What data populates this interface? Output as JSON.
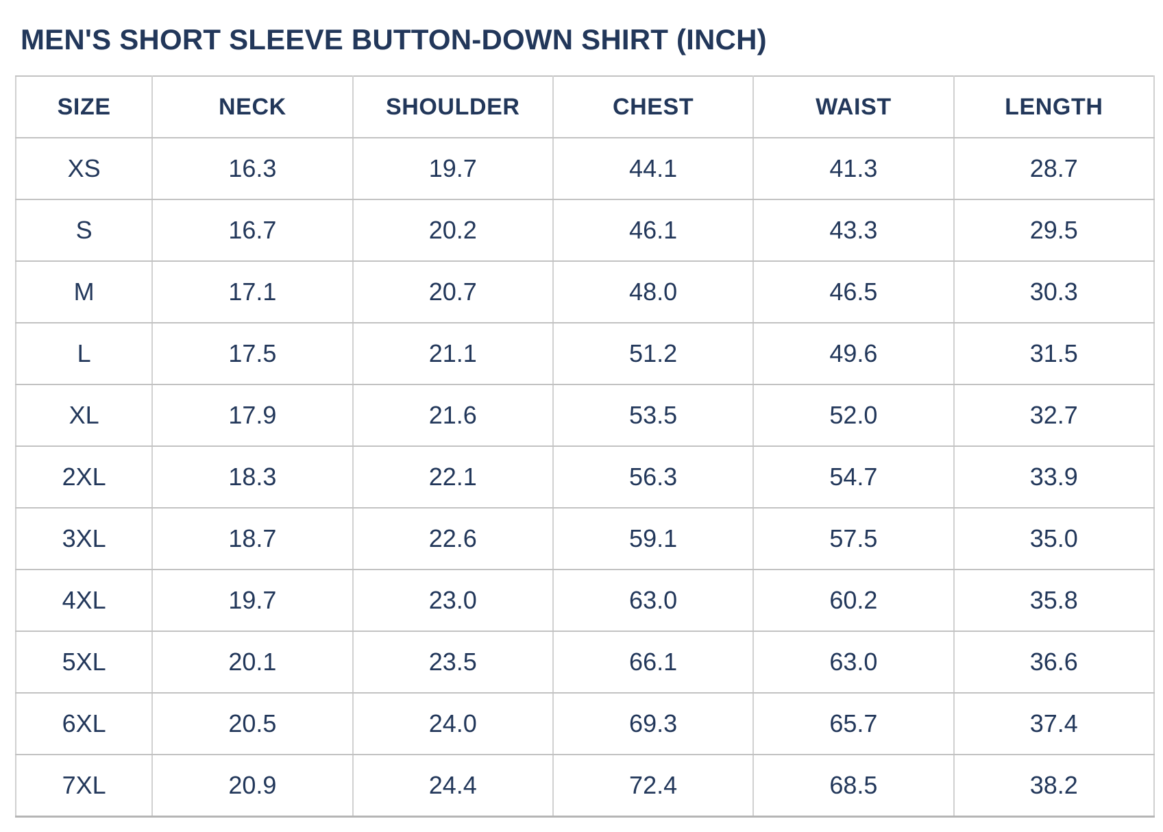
{
  "title": "MEN'S SHORT SLEEVE BUTTON-DOWN SHIRT (INCH)",
  "colors": {
    "text_navy": "#22375a",
    "border_gray": "#c7c7c7",
    "background": "#ffffff"
  },
  "chart_data": {
    "type": "table",
    "title": "MEN'S SHORT SLEEVE BUTTON-DOWN SHIRT (INCH)",
    "unit": "inch",
    "columns": [
      "SIZE",
      "NECK",
      "SHOULDER",
      "CHEST",
      "WAIST",
      "LENGTH"
    ],
    "rows": [
      [
        "XS",
        "16.3",
        "19.7",
        "44.1",
        "41.3",
        "28.7"
      ],
      [
        "S",
        "16.7",
        "20.2",
        "46.1",
        "43.3",
        "29.5"
      ],
      [
        "M",
        "17.1",
        "20.7",
        "48.0",
        "46.5",
        "30.3"
      ],
      [
        "L",
        "17.5",
        "21.1",
        "51.2",
        "49.6",
        "31.5"
      ],
      [
        "XL",
        "17.9",
        "21.6",
        "53.5",
        "52.0",
        "32.7"
      ],
      [
        "2XL",
        "18.3",
        "22.1",
        "56.3",
        "54.7",
        "33.9"
      ],
      [
        "3XL",
        "18.7",
        "22.6",
        "59.1",
        "57.5",
        "35.0"
      ],
      [
        "4XL",
        "19.7",
        "23.0",
        "63.0",
        "60.2",
        "35.8"
      ],
      [
        "5XL",
        "20.1",
        "23.5",
        "66.1",
        "63.0",
        "36.6"
      ],
      [
        "6XL",
        "20.5",
        "24.0",
        "69.3",
        "65.7",
        "37.4"
      ],
      [
        "7XL",
        "20.9",
        "24.4",
        "72.4",
        "68.5",
        "38.2"
      ]
    ]
  }
}
